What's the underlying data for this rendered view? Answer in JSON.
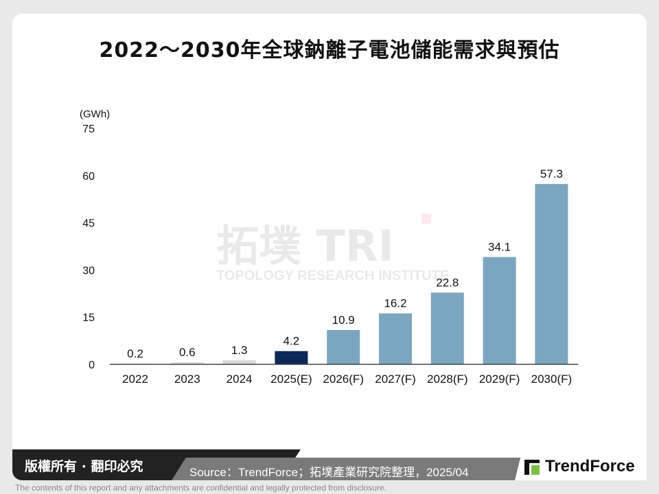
{
  "title": "2022～2030年全球鈉離子電池儲能需求與預估",
  "chart_data": {
    "type": "bar",
    "title": "2022～2030年全球鈉離子電池儲能需求與預估",
    "ylabel": "(GWh)",
    "xlabel": "",
    "categories": [
      "2022",
      "2023",
      "2024",
      "2025(E)",
      "2026(F)",
      "2027(F)",
      "2028(F)",
      "2029(F)",
      "2030(F)"
    ],
    "values": [
      0.2,
      0.6,
      1.3,
      4.2,
      10.9,
      16.2,
      22.8,
      34.1,
      57.3
    ],
    "value_labels": [
      "0.2",
      "0.6",
      "1.3",
      "4.2",
      "10.9",
      "16.2",
      "22.8",
      "34.1",
      "57.3"
    ],
    "bar_colors": [
      "#d9d9d9",
      "#d9d9d9",
      "#d9d9d9",
      "#0c2857",
      "#7ba6c1",
      "#7ba6c1",
      "#7ba6c1",
      "#7ba6c1",
      "#7ba6c1"
    ],
    "ylim": [
      0,
      75
    ],
    "yticks": [
      "0",
      "15",
      "30",
      "45",
      "60",
      "75"
    ],
    "grid": false
  },
  "watermark": "拓墣 TRI TOPOLOGY RESEARCH INSTITUTE",
  "footer": {
    "copyright": "版權所有 · 翻印必究",
    "source": "Source：TrendForce；拓墣產業研究院整理，2025/04",
    "logo": "TrendForce",
    "disclaimer": "The contents of this report and any attachments are confidential and legally protected from disclosure."
  }
}
